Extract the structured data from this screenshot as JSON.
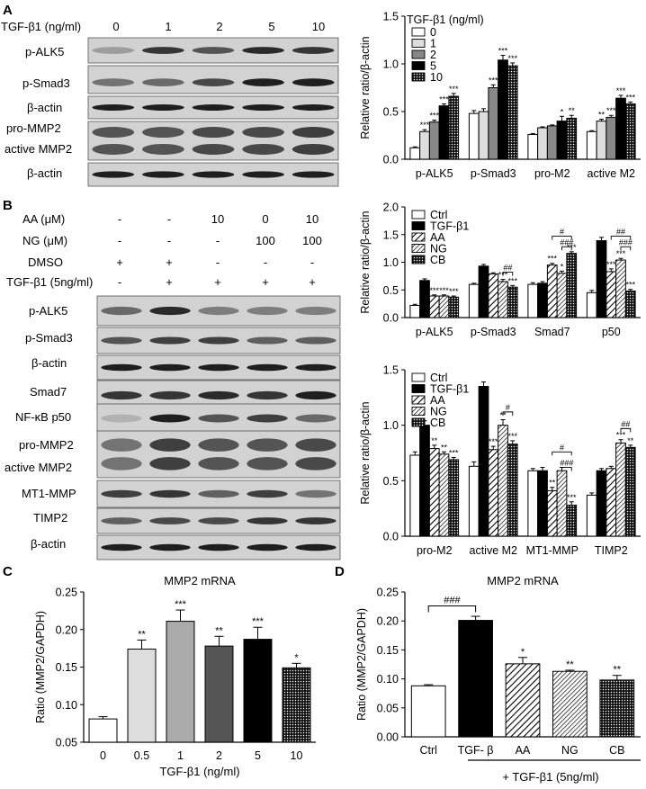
{
  "panels": {
    "A": {
      "letter": "A",
      "header_label": "TGF-β1 (ng/ml)",
      "header_values": [
        "0",
        "1",
        "2",
        "5",
        "10"
      ],
      "blots": [
        "p-ALK5",
        "p-Smad3",
        "β-actin",
        "pro-MMP2",
        "active MMP2",
        "β-actin"
      ]
    },
    "B": {
      "letter": "B",
      "condition_rows": [
        {
          "label": "AA (μM)",
          "values": [
            "-",
            "-",
            "10",
            "0",
            "10"
          ]
        },
        {
          "label": "NG (μM)",
          "values": [
            "-",
            "-",
            "-",
            "100",
            "100"
          ]
        },
        {
          "label": "DMSO",
          "values": [
            "+",
            "+",
            "-",
            "-",
            "-"
          ]
        },
        {
          "label": "TGF-β1 (5ng/ml)",
          "values": [
            "-",
            "+",
            "+",
            "+",
            "+"
          ]
        }
      ],
      "blots": [
        "p-ALK5",
        "p-Smad3",
        "β-actin",
        "Smad7",
        "NF-κB p50",
        "pro-MMP2",
        "active MMP2",
        "MT1-MMP",
        "TIMP2",
        "β-actin"
      ]
    },
    "C": {
      "letter": "C"
    },
    "D": {
      "letter": "D"
    }
  },
  "chart_data": [
    {
      "id": "A-chart",
      "type": "bar",
      "ylabel": "Relative ratio/β-actin",
      "ylim": [
        0,
        1.5
      ],
      "yticks": [
        "0.0",
        "0.5",
        "1.0",
        "1.5"
      ],
      "legend_title": "TGF-β1 (ng/ml)",
      "legend_placement": "top-left",
      "categories": [
        "p-ALK5",
        "p-Smad3",
        "pro-M2",
        "active M2"
      ],
      "series": [
        {
          "name": "0",
          "values": [
            0.12,
            0.48,
            0.26,
            0.29
          ],
          "errors": [
            0.01,
            0.03,
            0.01,
            0.01
          ],
          "stars": [
            "",
            "",
            "",
            ""
          ],
          "fill": "#ffffff"
        },
        {
          "name": "1",
          "values": [
            0.29,
            0.5,
            0.33,
            0.4
          ],
          "errors": [
            0.02,
            0.03,
            0.01,
            0.02
          ],
          "stars": [
            "***",
            "",
            "",
            "**"
          ],
          "fill": "#dddddd"
        },
        {
          "name": "2",
          "values": [
            0.39,
            0.75,
            0.35,
            0.44
          ],
          "errors": [
            0.02,
            0.03,
            0.01,
            0.02
          ],
          "stars": [
            "***",
            "***",
            "",
            "***"
          ],
          "fill": "#888888"
        },
        {
          "name": "5",
          "values": [
            0.56,
            1.04,
            0.4,
            0.64
          ],
          "errors": [
            0.02,
            0.05,
            0.05,
            0.03
          ],
          "stars": [
            "***",
            "***",
            "*",
            "***"
          ],
          "fill": "#000000"
        },
        {
          "name": "10",
          "values": [
            0.66,
            0.98,
            0.43,
            0.58
          ],
          "errors": [
            0.03,
            0.03,
            0.03,
            0.02
          ],
          "stars": [
            "***",
            "***",
            "**",
            "***"
          ],
          "fill": "dots"
        }
      ],
      "brackets": []
    },
    {
      "id": "B1-chart",
      "type": "bar",
      "ylabel": "Relative ratio/β-actin",
      "ylim": [
        0,
        2.0
      ],
      "yticks": [
        "0.0",
        "0.5",
        "1.0",
        "1.5",
        "2.0"
      ],
      "legend_placement": "top-left",
      "categories": [
        "p-ALK5",
        "p-Smad3",
        "Smad7",
        "p50"
      ],
      "series": [
        {
          "name": "Ctrl",
          "values": [
            0.22,
            0.6,
            0.6,
            0.45
          ],
          "errors": [
            0.02,
            0.02,
            0.03,
            0.04
          ],
          "stars": [
            "",
            "",
            "",
            ""
          ],
          "fill": "#ffffff"
        },
        {
          "name": "TGF-β1",
          "values": [
            0.67,
            0.93,
            0.62,
            1.39
          ],
          "errors": [
            0.03,
            0.03,
            0.03,
            0.06
          ],
          "stars": [
            "",
            "",
            "",
            ""
          ],
          "fill": "#000000"
        },
        {
          "name": "AA",
          "values": [
            0.39,
            0.79,
            0.95,
            0.83
          ],
          "errors": [
            0.02,
            0.02,
            0.03,
            0.05
          ],
          "stars": [
            "***",
            "",
            "***",
            "***"
          ],
          "fill": "diag"
        },
        {
          "name": "NG",
          "values": [
            0.39,
            0.65,
            0.8,
            1.04
          ],
          "errors": [
            0.02,
            0.04,
            0.04,
            0.03
          ],
          "stars": [
            "***",
            "***",
            "*",
            "***"
          ],
          "fill": "diagdense"
        },
        {
          "name": "CB",
          "values": [
            0.37,
            0.55,
            1.16,
            0.48
          ],
          "errors": [
            0.02,
            0.03,
            0.03,
            0.03
          ],
          "stars": [
            "***",
            "***",
            "***",
            "***"
          ],
          "fill": "dots"
        }
      ],
      "brackets": [
        {
          "cat": 1,
          "from": 3,
          "to": 4,
          "y": 0.82,
          "label": "##"
        },
        {
          "cat": 2,
          "from": 2,
          "to": 4,
          "y": 1.47,
          "label": "#"
        },
        {
          "cat": 2,
          "from": 3,
          "to": 4,
          "y": 1.28,
          "label": "###"
        },
        {
          "cat": 3,
          "from": 2,
          "to": 4,
          "y": 1.47,
          "label": "##"
        },
        {
          "cat": 3,
          "from": 3,
          "to": 4,
          "y": 1.28,
          "label": "###"
        }
      ]
    },
    {
      "id": "B2-chart",
      "type": "bar",
      "ylabel": "Relative ratio/β-actin",
      "ylim": [
        0,
        1.5
      ],
      "yticks": [
        "0.0",
        "0.5",
        "1.0",
        "1.5"
      ],
      "legend_placement": "top-left",
      "categories": [
        "pro-M2",
        "active M2",
        "MT1-MMP",
        "TIMP2"
      ],
      "series": [
        {
          "name": "Ctrl",
          "values": [
            0.73,
            0.63,
            0.59,
            0.37
          ],
          "errors": [
            0.03,
            0.04,
            0.02,
            0.02
          ],
          "stars": [
            "",
            "",
            "",
            ""
          ],
          "fill": "#ffffff"
        },
        {
          "name": "TGF-β1",
          "values": [
            1.0,
            1.35,
            0.59,
            0.59
          ],
          "errors": [
            0.04,
            0.04,
            0.03,
            0.02
          ],
          "stars": [
            "",
            "",
            "",
            ""
          ],
          "fill": "#000000"
        },
        {
          "name": "AA",
          "values": [
            0.79,
            0.78,
            0.41,
            0.61
          ],
          "errors": [
            0.03,
            0.03,
            0.03,
            0.02
          ],
          "stars": [
            "**",
            "***",
            "**",
            ""
          ],
          "fill": "diag"
        },
        {
          "name": "NG",
          "values": [
            0.74,
            1.0,
            0.59,
            0.84
          ],
          "errors": [
            0.02,
            0.05,
            0.03,
            0.03
          ],
          "stars": [
            "**",
            "**",
            "",
            "***"
          ],
          "fill": "diagdense"
        },
        {
          "name": "CB",
          "values": [
            0.69,
            0.83,
            0.28,
            0.8
          ],
          "errors": [
            0.02,
            0.03,
            0.03,
            0.02
          ],
          "stars": [
            "***",
            "***",
            "***",
            "**"
          ],
          "fill": "dots"
        }
      ],
      "brackets": [
        {
          "cat": 1,
          "from": 3,
          "to": 4,
          "y": 1.12,
          "label": "#"
        },
        {
          "cat": 2,
          "from": 2,
          "to": 4,
          "y": 0.76,
          "label": "#"
        },
        {
          "cat": 2,
          "from": 3,
          "to": 4,
          "y": 0.62,
          "label": "###"
        },
        {
          "cat": 3,
          "from": 3,
          "to": 4,
          "y": 0.97,
          "label": "##"
        }
      ]
    },
    {
      "id": "C-chart",
      "type": "bar",
      "title": "MMP2 mRNA",
      "ylabel": "Ratio (MMP2/GAPDH)",
      "xlabel": "TGF-β1 (ng/ml)",
      "ylim": [
        0.05,
        0.25
      ],
      "yticks": [
        "0.05",
        "0.10",
        "0.15",
        "0.20",
        "0.25"
      ],
      "categories": [
        "0",
        "0.5",
        "1",
        "2",
        "5",
        "10"
      ],
      "values": [
        0.081,
        0.174,
        0.211,
        0.178,
        0.187,
        0.149
      ],
      "errors": [
        0.003,
        0.012,
        0.015,
        0.013,
        0.016,
        0.006
      ],
      "stars": [
        "",
        "**",
        "***",
        "**",
        "***",
        "*"
      ],
      "fills": [
        "#ffffff",
        "#dddddd",
        "#aaaaaa",
        "#555555",
        "#000000",
        "dots"
      ]
    },
    {
      "id": "D-chart",
      "type": "bar",
      "title": "MMP2 mRNA",
      "ylabel": "Ratio (MMP2/GAPDH)",
      "xlabel": "+ TGF-β1 (5ng/ml)",
      "ylim": [
        0.0,
        0.25
      ],
      "yticks": [
        "0.00",
        "0.05",
        "0.10",
        "0.15",
        "0.20",
        "0.25"
      ],
      "categories": [
        "Ctrl",
        "TGF- β",
        "AA",
        "NG",
        "CB"
      ],
      "values": [
        0.088,
        0.201,
        0.126,
        0.113,
        0.098
      ],
      "errors": [
        0.002,
        0.007,
        0.011,
        0.002,
        0.008
      ],
      "stars": [
        "",
        "",
        "*",
        "**",
        "**"
      ],
      "fills": [
        "#ffffff",
        "#000000",
        "diag",
        "diagdense",
        "dots"
      ],
      "brackets": [
        {
          "from": 0,
          "to": 1,
          "y": 0.226,
          "label": "###"
        }
      ]
    }
  ]
}
